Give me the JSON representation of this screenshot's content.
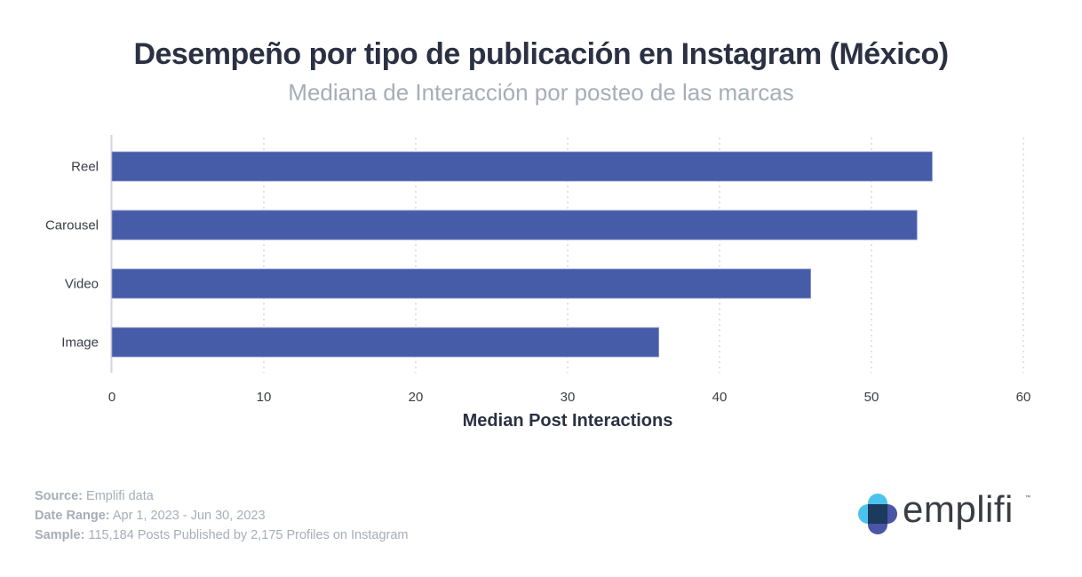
{
  "title": "Desempeño por tipo de publicación en Instagram (México)",
  "subtitle": "Mediana de Interacción por posteo de las marcas",
  "chart_data": {
    "type": "bar",
    "orientation": "horizontal",
    "title": "Desempeño por tipo de publicación en Instagram (México)",
    "subtitle": "Mediana de Interacción por posteo de las marcas",
    "categories": [
      "Reel",
      "Carousel",
      "Video",
      "Image"
    ],
    "values": [
      54,
      53,
      46,
      36
    ],
    "xlabel": "Median Post Interactions",
    "ylabel": "",
    "xlim": [
      0,
      60
    ],
    "xticks": [
      0,
      10,
      20,
      30,
      40,
      50,
      60
    ],
    "grid": "vertical dotted",
    "bar_color": "#475ca8"
  },
  "footer": {
    "source_label": "Source:",
    "source_value": "Emplifi data",
    "date_label": "Date Range:",
    "date_value": "Apr 1, 2023 - Jun 30, 2023",
    "sample_label": "Sample:",
    "sample_value": "115,184 Posts Published by 2,175 Profiles on Instagram"
  },
  "logo": {
    "text": "emplifi",
    "tm": "™",
    "colors": {
      "light": "#4cc3ec",
      "dark": "#1b3a5e",
      "indigo": "#4a55a6"
    }
  }
}
